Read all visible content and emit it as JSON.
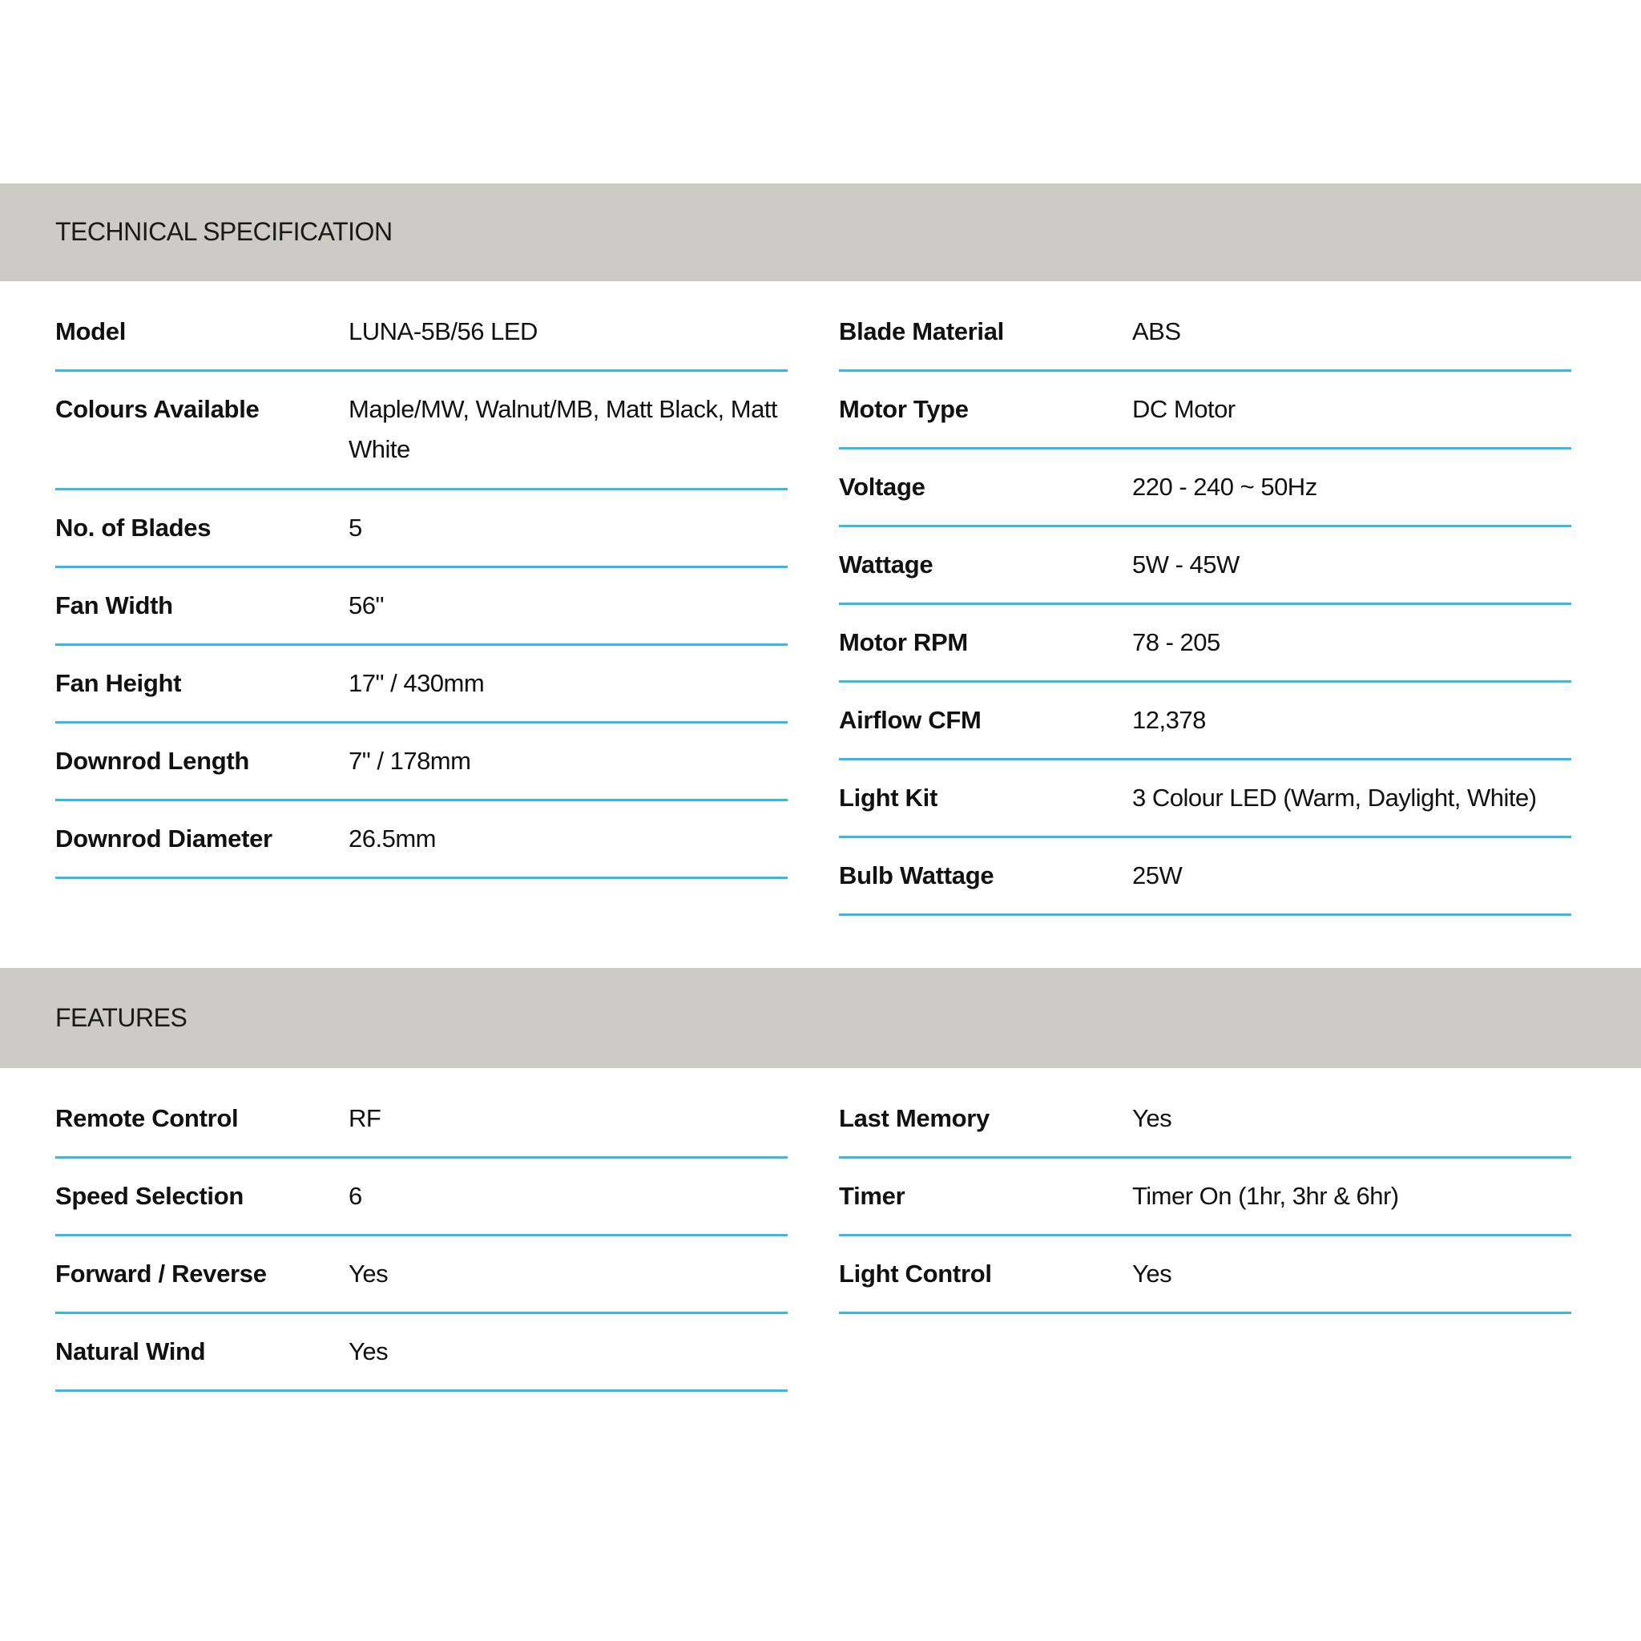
{
  "technical": {
    "title": "TECHNICAL SPECIFICATION",
    "left": [
      {
        "label": "Model",
        "value": "LUNA-5B/56 LED"
      },
      {
        "label": "Colours Available",
        "value": "Maple/MW, Walnut/MB, Matt Black, Matt White"
      },
      {
        "label": "No. of Blades",
        "value": "5"
      },
      {
        "label": "Fan Width",
        "value": "56\""
      },
      {
        "label": "Fan Height",
        "value": "17\" / 430mm"
      },
      {
        "label": "Downrod Length",
        "value": "7\" / 178mm"
      },
      {
        "label": "Downrod Diameter",
        "value": "26.5mm"
      }
    ],
    "right": [
      {
        "label": "Blade Material",
        "value": "ABS"
      },
      {
        "label": "Motor Type",
        "value": "DC Motor"
      },
      {
        "label": "Voltage",
        "value": "220 - 240 ~ 50Hz"
      },
      {
        "label": "Wattage",
        "value": "5W - 45W"
      },
      {
        "label": "Motor RPM",
        "value": "78 - 205"
      },
      {
        "label": "Airflow CFM",
        "value": "12,378"
      },
      {
        "label": "Light Kit",
        "value": "3 Colour LED (Warm, Daylight, White)"
      },
      {
        "label": "Bulb Wattage",
        "value": "25W"
      }
    ]
  },
  "features": {
    "title": "FEATURES",
    "left": [
      {
        "label": "Remote Control",
        "value": "RF"
      },
      {
        "label": "Speed Selection",
        "value": "6"
      },
      {
        "label": "Forward / Reverse",
        "value": "Yes"
      },
      {
        "label": "Natural Wind",
        "value": "Yes"
      }
    ],
    "right": [
      {
        "label": "Last Memory",
        "value": "Yes"
      },
      {
        "label": "Timer",
        "value": "Timer On (1hr, 3hr & 6hr)"
      },
      {
        "label": "Light Control",
        "value": "Yes"
      }
    ]
  },
  "colors": {
    "band": "#cccbc6",
    "divider": "#35b8ea"
  }
}
